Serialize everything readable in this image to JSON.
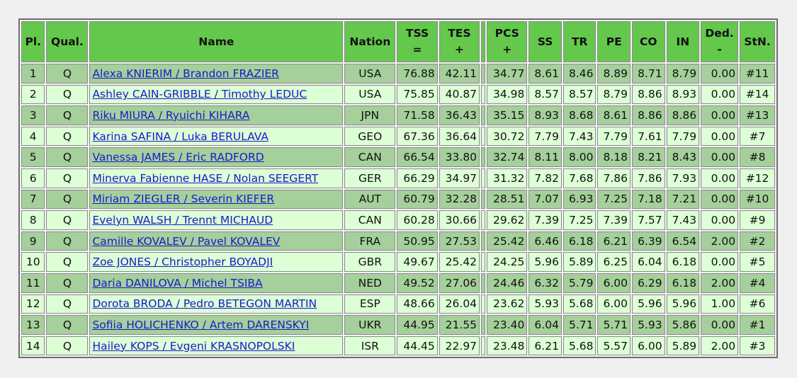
{
  "table": {
    "headers": [
      [
        "Pl."
      ],
      [
        "Qual."
      ],
      [
        "Name"
      ],
      [
        "Nation"
      ],
      [
        "TSS",
        "="
      ],
      [
        "TES",
        "+"
      ],
      [
        "PCS",
        "+"
      ],
      [
        "SS"
      ],
      [
        "TR"
      ],
      [
        "PE"
      ],
      [
        "CO"
      ],
      [
        "IN"
      ],
      [
        "Ded.",
        "-"
      ],
      [
        "StN."
      ]
    ],
    "rows": [
      [
        "1",
        "Q",
        "Alexa KNIERIM / Brandon FRAZIER",
        "USA",
        "76.88",
        "42.11",
        "34.77",
        "8.61",
        "8.46",
        "8.89",
        "8.71",
        "8.79",
        "0.00",
        "#11"
      ],
      [
        "2",
        "Q",
        "Ashley CAIN-GRIBBLE / Timothy LEDUC",
        "USA",
        "75.85",
        "40.87",
        "34.98",
        "8.57",
        "8.57",
        "8.79",
        "8.86",
        "8.93",
        "0.00",
        "#14"
      ],
      [
        "3",
        "Q",
        "Riku MIURA / Ryuichi KIHARA",
        "JPN",
        "71.58",
        "36.43",
        "35.15",
        "8.93",
        "8.68",
        "8.61",
        "8.86",
        "8.86",
        "0.00",
        "#13"
      ],
      [
        "4",
        "Q",
        "Karina SAFINA / Luka BERULAVA",
        "GEO",
        "67.36",
        "36.64",
        "30.72",
        "7.79",
        "7.43",
        "7.79",
        "7.61",
        "7.79",
        "0.00",
        "#7"
      ],
      [
        "5",
        "Q",
        "Vanessa JAMES / Eric RADFORD",
        "CAN",
        "66.54",
        "33.80",
        "32.74",
        "8.11",
        "8.00",
        "8.18",
        "8.21",
        "8.43",
        "0.00",
        "#8"
      ],
      [
        "6",
        "Q",
        "Minerva Fabienne HASE / Nolan SEEGERT",
        "GER",
        "66.29",
        "34.97",
        "31.32",
        "7.82",
        "7.68",
        "7.86",
        "7.86",
        "7.93",
        "0.00",
        "#12"
      ],
      [
        "7",
        "Q",
        "Miriam ZIEGLER / Severin KIEFER",
        "AUT",
        "60.79",
        "32.28",
        "28.51",
        "7.07",
        "6.93",
        "7.25",
        "7.18",
        "7.21",
        "0.00",
        "#10"
      ],
      [
        "8",
        "Q",
        "Evelyn WALSH / Trennt MICHAUD",
        "CAN",
        "60.28",
        "30.66",
        "29.62",
        "7.39",
        "7.25",
        "7.39",
        "7.57",
        "7.43",
        "0.00",
        "#9"
      ],
      [
        "9",
        "Q",
        "Camille KOVALEV / Pavel KOVALEV",
        "FRA",
        "50.95",
        "27.53",
        "25.42",
        "6.46",
        "6.18",
        "6.21",
        "6.39",
        "6.54",
        "2.00",
        "#2"
      ],
      [
        "10",
        "Q",
        "Zoe JONES / Christopher BOYADJI",
        "GBR",
        "49.67",
        "25.42",
        "24.25",
        "5.96",
        "5.89",
        "6.25",
        "6.04",
        "6.18",
        "0.00",
        "#5"
      ],
      [
        "11",
        "Q",
        "Daria DANILOVA / Michel TSIBA",
        "NED",
        "49.52",
        "27.06",
        "24.46",
        "6.32",
        "5.79",
        "6.00",
        "6.29",
        "6.18",
        "2.00",
        "#4"
      ],
      [
        "12",
        "Q",
        "Dorota BRODA / Pedro BETEGON MARTIN",
        "ESP",
        "48.66",
        "26.04",
        "23.62",
        "5.93",
        "5.68",
        "6.00",
        "5.96",
        "5.96",
        "1.00",
        "#6"
      ],
      [
        "13",
        "Q",
        "Sofiia HOLICHENKO / Artem DARENSKYI",
        "UKR",
        "44.95",
        "21.55",
        "23.40",
        "6.04",
        "5.71",
        "5.71",
        "5.93",
        "5.86",
        "0.00",
        "#1"
      ],
      [
        "14",
        "Q",
        "Hailey KOPS / Evgeni KRASNOPOLSKI",
        "ISR",
        "44.45",
        "22.97",
        "23.48",
        "6.21",
        "5.68",
        "5.57",
        "6.00",
        "5.89",
        "2.00",
        "#3"
      ]
    ]
  }
}
